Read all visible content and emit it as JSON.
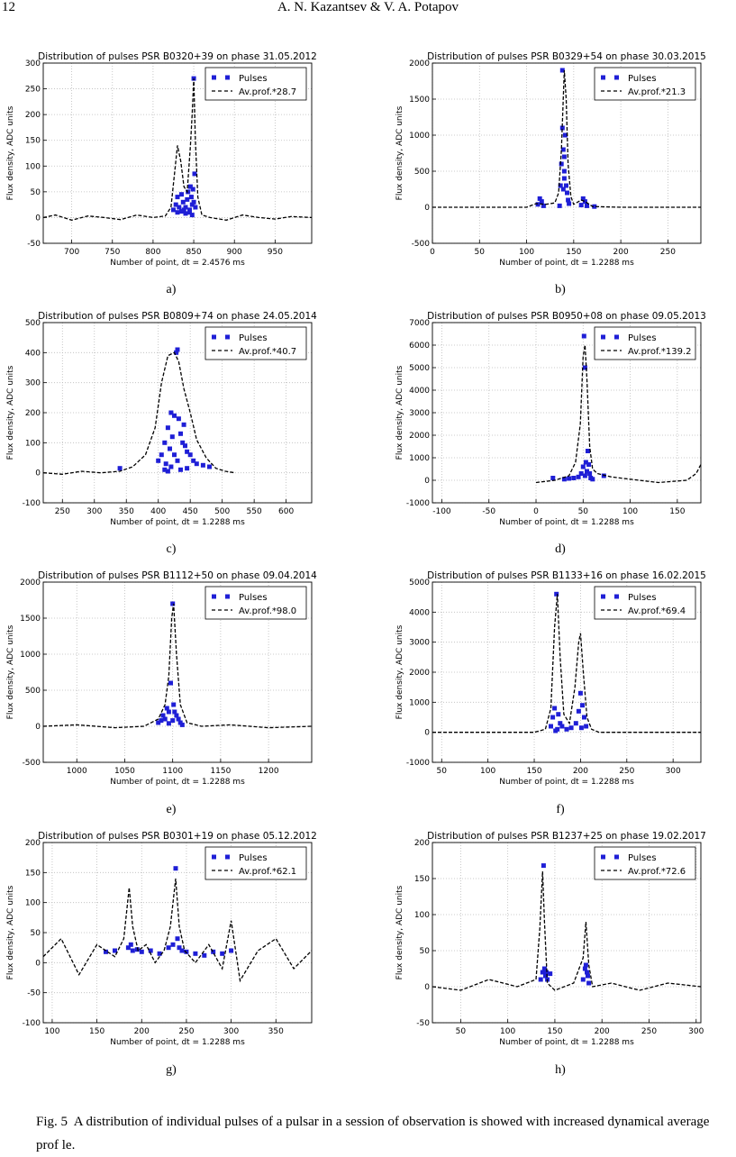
{
  "header": {
    "page_number": "12",
    "running_head": "A. N. Kazantsev & V. A. Potapov"
  },
  "caption": {
    "label": "Fig. 5",
    "text": "A distribution of individual pulses of a pulsar in a session of observation is showed with increased dynamical average prof le."
  },
  "chart_data": [
    {
      "panel": "a)",
      "type": "scatter",
      "title": "Distribution of pulses PSR B0320+39 on phase 31.05.2012",
      "xlabel": "Number of point, dt = 2.4576 ms",
      "ylabel": "Flux density, ADC units",
      "xlim": [
        665,
        995
      ],
      "ylim": [
        -50,
        300
      ],
      "xticks": [
        700,
        750,
        800,
        850,
        900,
        950
      ],
      "yticks": [
        -50,
        0,
        50,
        100,
        150,
        200,
        250,
        300
      ],
      "grid": true,
      "legend": "top-right",
      "series": [
        {
          "name": "Pulses",
          "kind": "points",
          "color": "#1f1fd6",
          "x": [
            825,
            828,
            830,
            832,
            835,
            837,
            838,
            840,
            842,
            843,
            845,
            846,
            847,
            848,
            849,
            850,
            850,
            851,
            852,
            830,
            835,
            840,
            845,
            848
          ],
          "y": [
            15,
            25,
            40,
            20,
            45,
            30,
            15,
            20,
            35,
            50,
            10,
            60,
            40,
            25,
            55,
            270,
            30,
            85,
            20,
            10,
            12,
            8,
            15,
            5
          ]
        },
        {
          "name": "Av.prof.*28.7",
          "kind": "dashed",
          "color": "#000000",
          "x": [
            665,
            680,
            700,
            720,
            740,
            760,
            780,
            800,
            815,
            822,
            826,
            830,
            834,
            838,
            842,
            846,
            848,
            850,
            852,
            855,
            860,
            870,
            890,
            910,
            930,
            950,
            970,
            995
          ],
          "y": [
            0,
            5,
            -5,
            3,
            0,
            -4,
            5,
            0,
            3,
            20,
            80,
            140,
            110,
            60,
            50,
            140,
            200,
            270,
            150,
            40,
            5,
            0,
            -5,
            5,
            0,
            -3,
            2,
            0
          ]
        }
      ]
    },
    {
      "panel": "b)",
      "type": "scatter",
      "title": "Distribution of pulses PSR B0329+54 on phase 30.03.2015",
      "xlabel": "Number of point, dt = 1.2288 ms",
      "ylabel": "Flux density, ADC units",
      "xlim": [
        0,
        285
      ],
      "ylim": [
        -500,
        2000
      ],
      "xticks": [
        0,
        50,
        100,
        150,
        200,
        250
      ],
      "yticks": [
        -500,
        0,
        500,
        1000,
        1500,
        2000
      ],
      "grid": true,
      "legend": "top-right",
      "series": [
        {
          "name": "Pulses",
          "kind": "points",
          "color": "#1f1fd6",
          "x": [
            112,
            114,
            116,
            118,
            135,
            136,
            137,
            138,
            138,
            139,
            140,
            140,
            141,
            142,
            143,
            144,
            145,
            158,
            160,
            162,
            164,
            172,
            140,
            139
          ],
          "y": [
            40,
            120,
            80,
            20,
            20,
            300,
            600,
            1900,
            1100,
            800,
            500,
            700,
            1000,
            300,
            200,
            100,
            50,
            30,
            120,
            80,
            20,
            10,
            400,
            250
          ]
        },
        {
          "name": "Av.prof.*21.3",
          "kind": "dashed",
          "color": "#000000",
          "x": [
            0,
            50,
            100,
            110,
            120,
            130,
            134,
            137,
            140,
            142,
            144,
            147,
            150,
            158,
            162,
            170,
            200,
            250,
            285
          ],
          "y": [
            0,
            0,
            0,
            50,
            40,
            60,
            200,
            800,
            1900,
            1500,
            600,
            150,
            40,
            100,
            80,
            10,
            0,
            0,
            0
          ]
        }
      ]
    },
    {
      "panel": "c)",
      "type": "scatter",
      "title": "Distribution of pulses PSR B0809+74 on phase 24.05.2014",
      "xlabel": "Number of point, dt = 1.2288 ms",
      "ylabel": "Flux density, ADC units",
      "xlim": [
        220,
        640
      ],
      "ylim": [
        -100,
        500
      ],
      "xticks": [
        250,
        300,
        350,
        400,
        450,
        500,
        550,
        600
      ],
      "yticks": [
        -100,
        0,
        100,
        200,
        300,
        400,
        500
      ],
      "grid": true,
      "legend": "top-right",
      "series": [
        {
          "name": "Pulses",
          "kind": "points",
          "color": "#1f1fd6",
          "x": [
            340,
            400,
            405,
            410,
            412,
            415,
            418,
            420,
            422,
            425,
            428,
            430,
            432,
            435,
            438,
            440,
            442,
            445,
            450,
            455,
            460,
            470,
            480,
            425,
            430,
            420,
            435,
            415,
            445,
            410
          ],
          "y": [
            15,
            40,
            60,
            100,
            30,
            150,
            80,
            200,
            120,
            190,
            400,
            410,
            180,
            130,
            100,
            160,
            90,
            70,
            60,
            40,
            30,
            25,
            20,
            60,
            40,
            20,
            10,
            5,
            15,
            10
          ]
        },
        {
          "name": "Av.prof.*40.7",
          "kind": "dashed",
          "color": "#000000",
          "x": [
            220,
            250,
            280,
            310,
            340,
            360,
            380,
            395,
            405,
            415,
            425,
            432,
            440,
            450,
            460,
            475,
            490,
            505,
            520
          ],
          "y": [
            0,
            -5,
            5,
            0,
            5,
            20,
            60,
            150,
            300,
            390,
            400,
            370,
            280,
            200,
            110,
            50,
            15,
            5,
            0
          ]
        }
      ]
    },
    {
      "panel": "d)",
      "type": "scatter",
      "title": "Distribution of pulses PSR B0950+08 on phase 09.05.2013",
      "xlabel": "Number of point, dt = 1.2288 ms",
      "ylabel": "Flux density, ADC units",
      "xlim": [
        -110,
        175
      ],
      "ylim": [
        -1000,
        7000
      ],
      "xticks": [
        -100,
        -50,
        0,
        50,
        100,
        150
      ],
      "yticks": [
        -1000,
        0,
        1000,
        2000,
        3000,
        4000,
        5000,
        6000,
        7000
      ],
      "grid": true,
      "legend": "top-right",
      "series": [
        {
          "name": "Pulses",
          "kind": "points",
          "color": "#1f1fd6",
          "x": [
            18,
            30,
            35,
            40,
            45,
            48,
            50,
            51,
            52,
            53,
            54,
            55,
            56,
            57,
            58,
            72,
            60,
            52
          ],
          "y": [
            100,
            50,
            80,
            100,
            150,
            300,
            600,
            6400,
            5000,
            800,
            400,
            1300,
            700,
            300,
            100,
            200,
            50,
            200
          ]
        },
        {
          "name": "Av.prof.*139.2",
          "kind": "dashed",
          "color": "#000000",
          "x": [
            0,
            20,
            35,
            42,
            47,
            50,
            52,
            54,
            57,
            60,
            65,
            80,
            100,
            130,
            160,
            170,
            175
          ],
          "y": [
            -100,
            0,
            200,
            800,
            2500,
            5500,
            6000,
            4500,
            1500,
            500,
            300,
            150,
            50,
            -100,
            0,
            300,
            700
          ]
        }
      ]
    },
    {
      "panel": "e)",
      "type": "scatter",
      "title": "Distribution of pulses PSR B1112+50 on phase 09.04.2014",
      "xlabel": "Number of point, dt = 1.2288 ms",
      "ylabel": "Flux density, ADC units",
      "xlim": [
        965,
        1245
      ],
      "ylim": [
        -500,
        2000
      ],
      "xticks": [
        1000,
        1050,
        1100,
        1150,
        1200
      ],
      "yticks": [
        -500,
        0,
        500,
        1000,
        1500,
        2000
      ],
      "grid": true,
      "legend": "top-right",
      "series": [
        {
          "name": "Pulses",
          "kind": "points",
          "color": "#1f1fd6",
          "x": [
            1085,
            1088,
            1090,
            1092,
            1094,
            1096,
            1098,
            1100,
            1101,
            1102,
            1104,
            1106,
            1108,
            1110,
            1100,
            1096
          ],
          "y": [
            50,
            80,
            150,
            100,
            250,
            200,
            600,
            1700,
            300,
            200,
            150,
            100,
            50,
            20,
            80,
            40
          ]
        },
        {
          "name": "Av.prof.*98.0",
          "kind": "dashed",
          "color": "#000000",
          "x": [
            965,
            1000,
            1040,
            1070,
            1085,
            1092,
            1096,
            1099,
            1101,
            1104,
            1108,
            1115,
            1130,
            1160,
            1200,
            1245
          ],
          "y": [
            0,
            20,
            -20,
            0,
            100,
            300,
            700,
            1500,
            1700,
            1000,
            300,
            50,
            0,
            20,
            -20,
            0
          ]
        }
      ]
    },
    {
      "panel": "f)",
      "type": "scatter",
      "title": "Distribution of pulses PSR B1133+16 on phase 16.02.2015",
      "xlabel": "Number of point, dt = 1.2288 ms",
      "ylabel": "Flux density, ADC units",
      "xlim": [
        40,
        330
      ],
      "ylim": [
        -1000,
        5000
      ],
      "xticks": [
        50,
        100,
        150,
        200,
        250,
        300
      ],
      "yticks": [
        -1000,
        0,
        1000,
        2000,
        3000,
        4000,
        5000
      ],
      "grid": true,
      "legend": "top-right",
      "series": [
        {
          "name": "Pulses",
          "kind": "points",
          "color": "#1f1fd6",
          "x": [
            168,
            170,
            172,
            174,
            176,
            178,
            180,
            185,
            190,
            195,
            198,
            200,
            202,
            204,
            206,
            175,
            173,
            201
          ],
          "y": [
            200,
            500,
            800,
            4600,
            600,
            300,
            200,
            100,
            150,
            300,
            700,
            1300,
            900,
            500,
            200,
            100,
            50,
            150
          ]
        },
        {
          "name": "Av.prof.*69.4",
          "kind": "dashed",
          "color": "#000000",
          "x": [
            40,
            100,
            150,
            162,
            168,
            172,
            175,
            178,
            182,
            188,
            194,
            198,
            200,
            203,
            207,
            212,
            220,
            260,
            330
          ],
          "y": [
            0,
            0,
            0,
            100,
            800,
            3500,
            4600,
            2500,
            600,
            300,
            1500,
            3000,
            3300,
            2000,
            500,
            100,
            0,
            0,
            0
          ]
        }
      ]
    },
    {
      "panel": "g)",
      "type": "scatter",
      "title": "Distribution of pulses PSR B0301+19 on phase 05.12.2012",
      "xlabel": "Number of point, dt = 1.2288 ms",
      "ylabel": "Flux density, ADC units",
      "xlim": [
        90,
        390
      ],
      "ylim": [
        -100,
        200
      ],
      "xticks": [
        100,
        150,
        200,
        250,
        300,
        350
      ],
      "yticks": [
        -100,
        -50,
        0,
        50,
        100,
        150,
        200
      ],
      "grid": true,
      "legend": "top-right",
      "series": [
        {
          "name": "Pulses",
          "kind": "points",
          "color": "#1f1fd6",
          "x": [
            160,
            170,
            185,
            188,
            190,
            195,
            200,
            210,
            220,
            230,
            235,
            238,
            240,
            242,
            245,
            250,
            260,
            270,
            280,
            290,
            300
          ],
          "y": [
            18,
            20,
            25,
            30,
            20,
            22,
            18,
            20,
            15,
            25,
            30,
            157,
            40,
            25,
            20,
            18,
            15,
            12,
            18,
            15,
            20
          ]
        },
        {
          "name": "Av.prof.*62.1",
          "kind": "dashed",
          "color": "#000000",
          "x": [
            90,
            110,
            130,
            150,
            170,
            180,
            186,
            190,
            196,
            205,
            215,
            225,
            232,
            238,
            242,
            248,
            260,
            275,
            290,
            300,
            310,
            330,
            350,
            370,
            390
          ],
          "y": [
            10,
            40,
            -20,
            30,
            10,
            40,
            125,
            60,
            20,
            30,
            0,
            20,
            60,
            140,
            60,
            20,
            0,
            30,
            -10,
            70,
            -30,
            20,
            40,
            -10,
            20
          ]
        }
      ]
    },
    {
      "panel": "h)",
      "type": "scatter",
      "title": "Distribution of pulses PSR B1237+25 on phase 19.02.2017",
      "xlabel": "Number of point, dt = 1.2288 ms",
      "ylabel": "Flux density, ADC units",
      "xlim": [
        20,
        305
      ],
      "ylim": [
        -50,
        200
      ],
      "xticks": [
        50,
        100,
        150,
        200,
        250,
        300
      ],
      "yticks": [
        -50,
        0,
        50,
        100,
        150,
        200
      ],
      "grid": true,
      "legend": "top-right",
      "series": [
        {
          "name": "Pulses",
          "kind": "points",
          "color": "#1f1fd6",
          "x": [
            135,
            137,
            138,
            139,
            140,
            141,
            142,
            145,
            180,
            182,
            183,
            184,
            185,
            186
          ],
          "y": [
            10,
            20,
            168,
            25,
            15,
            20,
            10,
            18,
            10,
            25,
            30,
            20,
            15,
            5
          ]
        },
        {
          "name": "Av.prof.*72.6",
          "kind": "dashed",
          "color": "#000000",
          "x": [
            20,
            50,
            80,
            110,
            130,
            134,
            137,
            139,
            142,
            150,
            170,
            180,
            183,
            186,
            190,
            210,
            240,
            270,
            305
          ],
          "y": [
            0,
            -5,
            10,
            0,
            10,
            80,
            160,
            90,
            5,
            -5,
            5,
            40,
            90,
            30,
            0,
            5,
            -5,
            5,
            0
          ]
        }
      ]
    }
  ]
}
